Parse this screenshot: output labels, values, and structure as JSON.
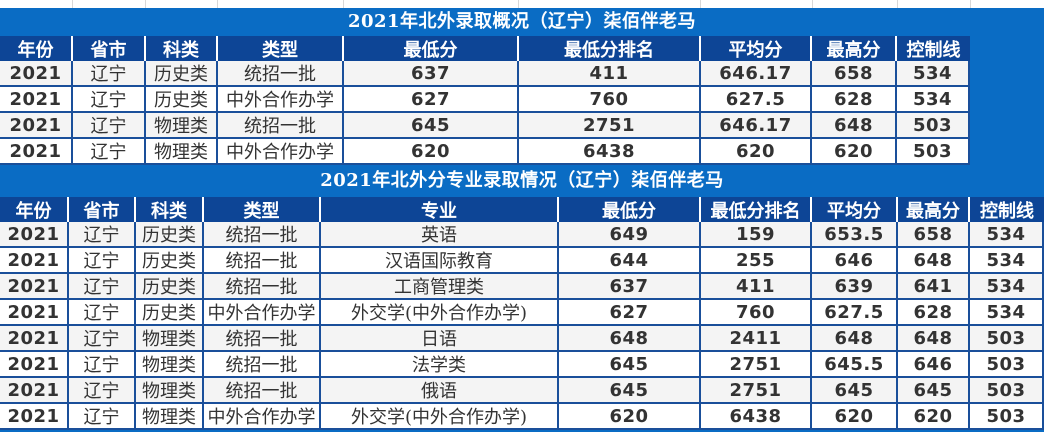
{
  "summary": {
    "title": "2021年北外录取概况（辽宁）柒佰伴老马",
    "headers": [
      "年份",
      "省市",
      "科类",
      "类型",
      "最低分",
      "最低分排名",
      "平均分",
      "最高分",
      "控制线"
    ],
    "rows": [
      [
        "2021",
        "辽宁",
        "历史类",
        "统招一批",
        "637",
        "411",
        "646.17",
        "658",
        "534"
      ],
      [
        "2021",
        "辽宁",
        "历史类",
        "中外合作办学",
        "627",
        "760",
        "627.5",
        "628",
        "534"
      ],
      [
        "2021",
        "辽宁",
        "物理类",
        "统招一批",
        "645",
        "2751",
        "646.17",
        "648",
        "503"
      ],
      [
        "2021",
        "辽宁",
        "物理类",
        "中外合作办学",
        "620",
        "6438",
        "620",
        "620",
        "503"
      ]
    ]
  },
  "major": {
    "title": "2021年北外分专业录取情况（辽宁）柒佰伴老马",
    "headers": [
      "年份",
      "省市",
      "科类",
      "类型",
      "专业",
      "最低分",
      "最低分排名",
      "平均分",
      "最高分",
      "控制线"
    ],
    "rows": [
      [
        "2021",
        "辽宁",
        "历史类",
        "统招一批",
        "英语",
        "649",
        "159",
        "653.5",
        "658",
        "534"
      ],
      [
        "2021",
        "辽宁",
        "历史类",
        "统招一批",
        "汉语国际教育",
        "644",
        "255",
        "646",
        "648",
        "534"
      ],
      [
        "2021",
        "辽宁",
        "历史类",
        "统招一批",
        "工商管理类",
        "637",
        "411",
        "639",
        "641",
        "534"
      ],
      [
        "2021",
        "辽宁",
        "历史类",
        "中外合作办学",
        "外交学(中外合作办学)",
        "627",
        "760",
        "627.5",
        "628",
        "534"
      ],
      [
        "2021",
        "辽宁",
        "物理类",
        "统招一批",
        "日语",
        "648",
        "2411",
        "648",
        "648",
        "503"
      ],
      [
        "2021",
        "辽宁",
        "物理类",
        "统招一批",
        "法学类",
        "645",
        "2751",
        "645.5",
        "646",
        "503"
      ],
      [
        "2021",
        "辽宁",
        "物理类",
        "统招一批",
        "俄语",
        "645",
        "2751",
        "645",
        "645",
        "503"
      ],
      [
        "2021",
        "辽宁",
        "物理类",
        "中外合作办学",
        "外交学(中外合作办学)",
        "620",
        "6438",
        "620",
        "620",
        "503"
      ]
    ]
  },
  "colors": {
    "panel_blue": "#0a6cc4",
    "header_navy": "#0d4596",
    "grid_blue": "#1a4f9a",
    "row_gray": "#f4f4f4",
    "row_white": "#ffffff",
    "text": "#333333"
  }
}
